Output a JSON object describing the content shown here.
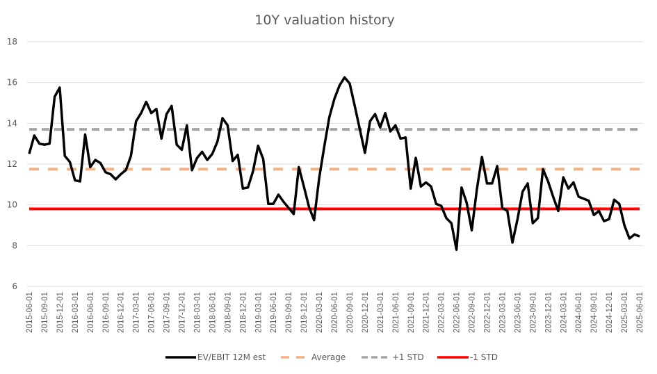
{
  "chart_data": {
    "type": "line",
    "title": "10Y valuation history",
    "xlabel": "",
    "ylabel": "",
    "ylim": [
      6,
      18
    ],
    "yticks": [
      "6",
      "8",
      "10",
      "12",
      "14",
      "16",
      "18"
    ],
    "grid": true,
    "legend_position": "bottom",
    "x_tick_labels": [
      "2015-06-01",
      "2015-09-01",
      "2015-12-01",
      "2016-03-01",
      "2016-06-01",
      "2016-09-01",
      "2016-12-01",
      "2017-03-01",
      "2017-06-01",
      "2017-09-01",
      "2017-12-01",
      "2018-03-01",
      "2018-06-01",
      "2018-09-01",
      "2018-12-01",
      "2019-03-01",
      "2019-06-01",
      "2019-09-01",
      "2019-12-01",
      "2020-03-01",
      "2020-06-01",
      "2020-09-01",
      "2020-12-01",
      "2021-03-01",
      "2021-06-01",
      "2021-09-01",
      "2021-12-01",
      "2022-03-01",
      "2022-06-01",
      "2022-09-01",
      "2022-12-01",
      "2023-03-01",
      "2023-06-01",
      "2023-09-01",
      "2023-12-01",
      "2024-03-01",
      "2024-06-01",
      "2024-09-01",
      "2024-12-01",
      "2025-03-01",
      "2025-06-01"
    ],
    "x_frequency": "monthly",
    "x_start": "2015-06-01",
    "x_end": "2025-06-01",
    "series": [
      {
        "name": "EV/EBIT 12M est",
        "color": "#000000",
        "style": "solid",
        "values": [
          12.5,
          13.4,
          13.0,
          12.95,
          13.0,
          15.3,
          15.75,
          12.4,
          12.1,
          11.2,
          11.15,
          13.45,
          11.85,
          12.2,
          12.05,
          11.6,
          11.5,
          11.25,
          11.5,
          11.7,
          12.4,
          14.1,
          14.5,
          15.05,
          14.5,
          14.7,
          13.25,
          14.45,
          14.85,
          12.95,
          12.7,
          13.9,
          11.7,
          12.3,
          12.6,
          12.2,
          12.5,
          13.1,
          14.25,
          13.9,
          12.15,
          12.45,
          10.8,
          10.85,
          11.65,
          12.9,
          12.25,
          10.05,
          10.05,
          10.5,
          10.15,
          9.85,
          9.55,
          11.85,
          10.9,
          9.9,
          9.25,
          11.3,
          12.85,
          14.3,
          15.2,
          15.85,
          16.25,
          15.95,
          14.85,
          13.7,
          12.55,
          14.1,
          14.45,
          13.8,
          14.5,
          13.6,
          13.9,
          13.25,
          13.3,
          10.8,
          12.3,
          10.9,
          11.1,
          10.9,
          10.05,
          9.95,
          9.35,
          9.1,
          7.8,
          10.85,
          10.1,
          8.75,
          10.75,
          12.35,
          11.05,
          11.05,
          11.9,
          9.85,
          9.7,
          8.15,
          9.3,
          10.65,
          11.05,
          9.1,
          9.35,
          11.75,
          11.15,
          10.4,
          9.7,
          11.35,
          10.8,
          11.1,
          10.4,
          10.3,
          10.2,
          9.5,
          9.7,
          9.2,
          9.3,
          10.25,
          10.05,
          9.0,
          8.35,
          8.55,
          8.45
        ]
      },
      {
        "name": "Average",
        "color": "#F4B183",
        "style": "dashed",
        "value": 11.75
      },
      {
        "name": "+1 STD",
        "color": "#A6A6A6",
        "style": "dashed",
        "value": 13.7
      },
      {
        "name": "-1 STD",
        "color": "#FF0000",
        "style": "solid",
        "value": 9.8
      }
    ]
  }
}
